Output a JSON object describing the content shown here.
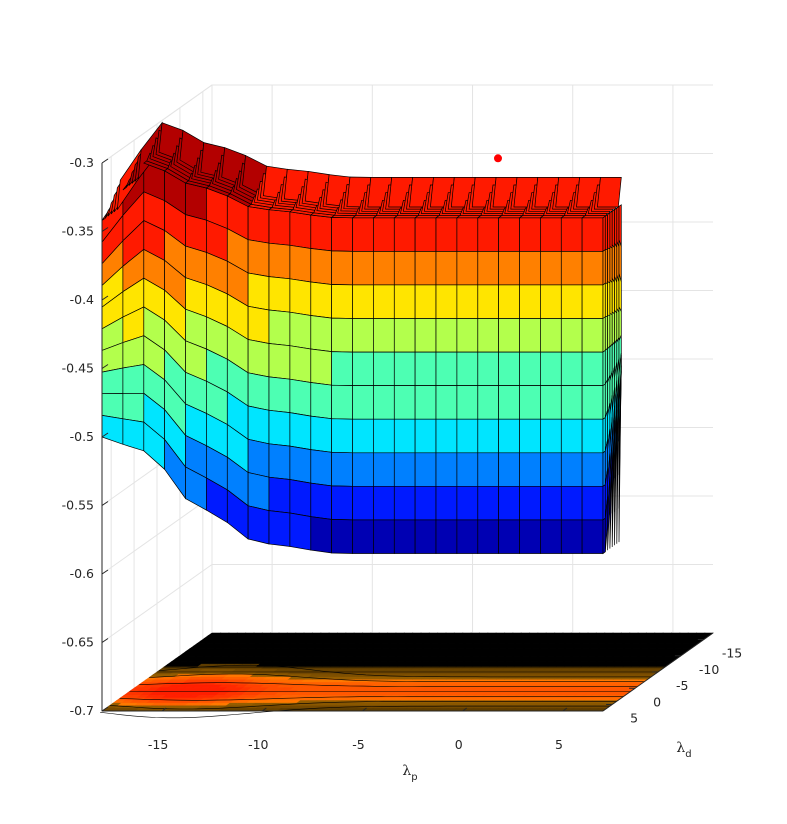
{
  "chart_data": {
    "type": "surface",
    "title": "",
    "xlabel": "λ",
    "xlabel_sub": "p",
    "ylabel": "λ",
    "ylabel_sub": "d",
    "zlabel": "",
    "x_ticks": [
      "-15",
      "-10",
      "-5",
      "0",
      "5"
    ],
    "y_ticks": [
      "-15",
      "-10",
      "-5",
      "0",
      "5"
    ],
    "z_ticks": [
      "-0.3",
      "-0.35",
      "-0.4",
      "-0.45",
      "-0.5",
      "-0.55",
      "-0.6",
      "-0.65",
      "-0.7"
    ],
    "xlim": [
      -18,
      7
    ],
    "ylim": [
      -17,
      7
    ],
    "zlim": [
      -0.7,
      -0.3
    ],
    "colormap": "jet",
    "color_levels": 10,
    "grid": true,
    "contour_projection_on_floor": true,
    "marker": {
      "x": -3.5,
      "y": -16,
      "z": -0.319,
      "color": "#ff0000"
    },
    "front_edge_profile": [
      {
        "x": -18,
        "z_top": -0.342,
        "z_bottom": -0.5
      },
      {
        "x": -16,
        "z_top": -0.3,
        "z_bottom": -0.51
      },
      {
        "x": -13,
        "z_top": -0.318,
        "z_bottom": -0.553
      },
      {
        "x": -10,
        "z_top": -0.334,
        "z_bottom": -0.578
      },
      {
        "x": -6,
        "z_top": -0.34,
        "z_bottom": -0.585
      },
      {
        "x": 0,
        "z_top": -0.34,
        "z_bottom": -0.585
      },
      {
        "x": 7,
        "z_top": -0.34,
        "z_bottom": -0.585
      }
    ]
  }
}
